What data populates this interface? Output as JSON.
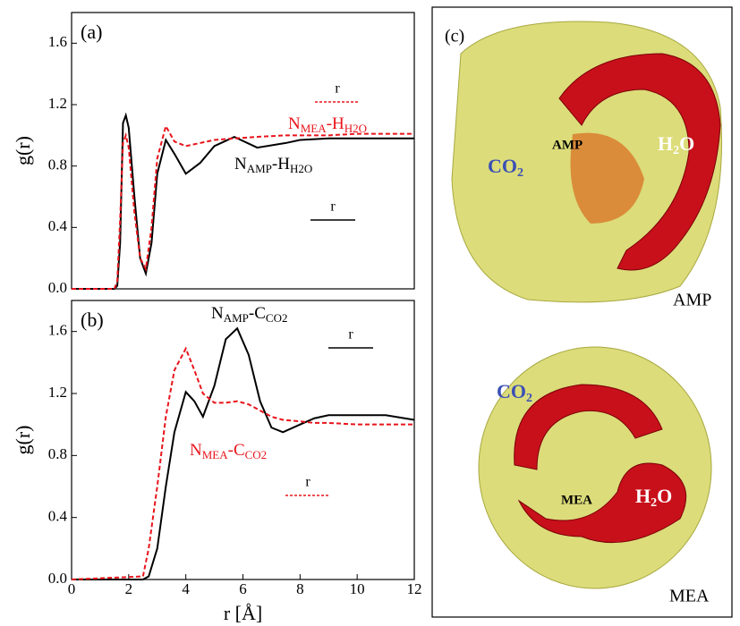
{
  "chart_data": [
    {
      "type": "line",
      "panel_label": "(a)",
      "ylabel": "g(r)",
      "xlim": [
        0,
        12
      ],
      "ylim": [
        0,
        1.8
      ],
      "yticks": [
        {
          "value": 0,
          "label": "0.0"
        },
        0.4,
        0.8,
        1.2,
        1.6
      ],
      "x": [
        0,
        1.5,
        1.6,
        1.7,
        1.8,
        1.9,
        2.0,
        2.2,
        2.4,
        2.6,
        2.8,
        3.0,
        3.3,
        3.6,
        4.0,
        4.5,
        5.0,
        5.7,
        6.5,
        7.5,
        8,
        9,
        10,
        11,
        12
      ],
      "series": [
        {
          "label_parts": [
            "N",
            "AMP",
            "-H",
            "H2O"
          ],
          "color": "#000000",
          "dash": false,
          "values": [
            0,
            0,
            0.02,
            0.3,
            1.08,
            1.13,
            1.05,
            0.6,
            0.2,
            0.1,
            0.3,
            0.75,
            0.97,
            0.88,
            0.75,
            0.82,
            0.93,
            0.99,
            0.92,
            0.95,
            0.97,
            0.98,
            0.98,
            0.98,
            0.98
          ]
        },
        {
          "label_parts": [
            "N",
            "MEA",
            "-H",
            "H2O"
          ],
          "color": "#e8141b",
          "dash": true,
          "values": [
            0,
            0,
            0.05,
            0.45,
            0.95,
            1.0,
            0.92,
            0.5,
            0.2,
            0.13,
            0.4,
            0.85,
            1.06,
            0.96,
            0.93,
            0.95,
            0.97,
            0.98,
            0.99,
            1.0,
            1.0,
            1.0,
            1.01,
            1.01,
            1.01
          ]
        }
      ],
      "inset_labels": [
        "r",
        "r"
      ]
    },
    {
      "type": "line",
      "panel_label": "(b)",
      "ylabel": "g(r)",
      "xlabel": "r [Å]",
      "xlim": [
        0,
        12
      ],
      "ylim": [
        0,
        1.8
      ],
      "xticks": [
        0,
        2,
        4,
        6,
        8,
        10,
        12
      ],
      "yticks": [
        {
          "value": 0,
          "label": "0.0"
        },
        0.4,
        0.8,
        1.2,
        1.6
      ],
      "x": [
        0,
        2.5,
        2.7,
        3.0,
        3.3,
        3.6,
        4.0,
        4.3,
        4.6,
        5.0,
        5.4,
        5.8,
        6.2,
        6.6,
        7.0,
        7.4,
        8,
        8.5,
        9,
        10,
        11,
        12
      ],
      "series": [
        {
          "label_parts": [
            "N",
            "AMP",
            "-C",
            "CO2"
          ],
          "color": "#000000",
          "dash": false,
          "values": [
            0,
            0,
            0.02,
            0.2,
            0.6,
            0.95,
            1.21,
            1.15,
            1.05,
            1.25,
            1.55,
            1.62,
            1.45,
            1.15,
            0.98,
            0.95,
            1.0,
            1.04,
            1.06,
            1.06,
            1.06,
            1.03
          ]
        },
        {
          "label_parts": [
            "N",
            "MEA",
            "-C",
            "CO2"
          ],
          "color": "#e8141b",
          "dash": true,
          "values": [
            0,
            0.02,
            0.2,
            0.6,
            1.05,
            1.35,
            1.49,
            1.35,
            1.2,
            1.14,
            1.14,
            1.15,
            1.13,
            1.09,
            1.05,
            1.03,
            1.02,
            1.01,
            1.01,
            1.0,
            1.0,
            1.0
          ]
        }
      ],
      "inset_labels": [
        "r",
        "r"
      ]
    }
  ],
  "panel_c": {
    "label": "(c)",
    "top": {
      "co2": [
        "CO",
        "2"
      ],
      "h2o": [
        "H",
        "2",
        "O"
      ],
      "molecule": "AMP",
      "caption": "AMP"
    },
    "bottom": {
      "co2": [
        "CO",
        "2"
      ],
      "h2o": [
        "H",
        "2",
        "O"
      ],
      "molecule": "MEA",
      "caption": "MEA"
    }
  }
}
